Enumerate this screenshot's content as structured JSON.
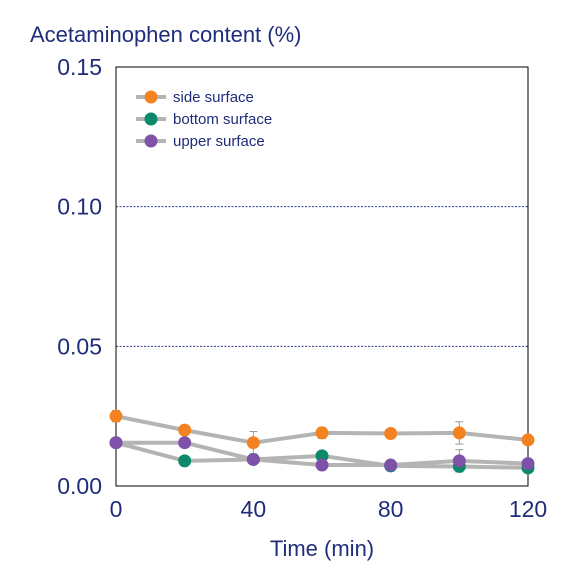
{
  "chart_data": {
    "type": "line",
    "ylabel": "Acetaminophen content (%)",
    "xlabel": "Time (min)",
    "x": [
      0,
      20,
      40,
      60,
      80,
      100,
      120
    ],
    "xticks": [
      0,
      40,
      80,
      120
    ],
    "xtick_labels": [
      "0",
      "40",
      "80",
      "120"
    ],
    "yticks": [
      0,
      0.05,
      0.1,
      0.15
    ],
    "ytick_labels": [
      "0.00",
      "0.05",
      "0.10",
      "0.15"
    ],
    "xlim": [
      0,
      120
    ],
    "ylim": [
      0,
      0.15
    ],
    "grid": "horizontal dashed at 0.05 and 0.10",
    "legend_position": "top-left",
    "series": [
      {
        "name": "side surface",
        "color": "#f58220",
        "values": [
          0.025,
          0.02,
          0.0155,
          0.019,
          0.0188,
          0.019,
          0.0165
        ],
        "errors": [
          0.002,
          0,
          0.004,
          0.002,
          0.0015,
          0.004,
          0
        ]
      },
      {
        "name": "bottom surface",
        "color": "#0a8a6a",
        "values": [
          0.0155,
          0.009,
          0.0095,
          0.0108,
          0.0072,
          0.007,
          0.0065
        ],
        "errors": [
          0,
          0,
          0,
          0,
          0,
          0,
          0
        ]
      },
      {
        "name": "upper surface",
        "color": "#7d52a8",
        "values": [
          0.0155,
          0.0155,
          0.0095,
          0.0075,
          0.0075,
          0.009,
          0.008
        ],
        "errors": [
          0,
          0,
          0,
          0,
          0,
          0.004,
          0
        ]
      }
    ],
    "line_color": "#b4b4b4"
  }
}
